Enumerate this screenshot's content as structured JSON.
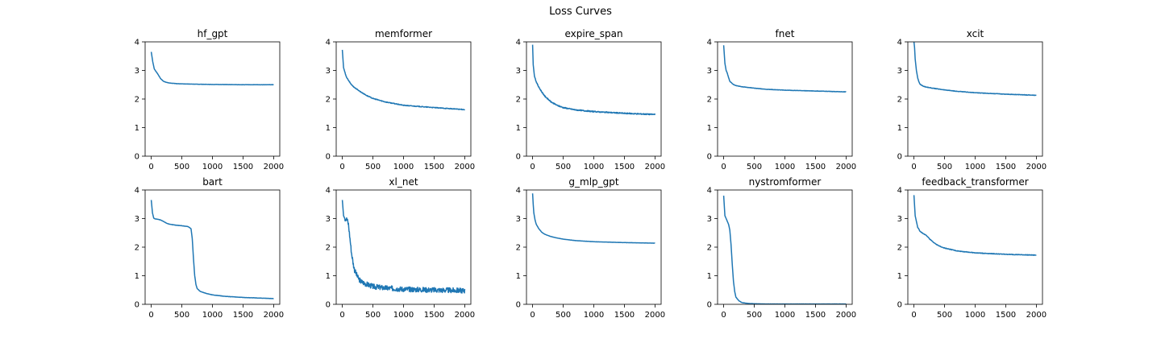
{
  "figure": {
    "title": "Loss Curves"
  },
  "chart_data": [
    {
      "type": "line",
      "title": "hf_gpt",
      "xlim": [
        -100,
        2100
      ],
      "ylim": [
        0,
        4
      ],
      "xticks": [
        0,
        500,
        1000,
        1500,
        2000
      ],
      "yticks": [
        0,
        1,
        2,
        3,
        4
      ],
      "color": "#1f77b4",
      "noise": 0.004,
      "x": [
        0,
        25,
        50,
        75,
        100,
        150,
        200,
        250,
        300,
        400,
        500,
        700,
        1000,
        1500,
        2000
      ],
      "y": [
        3.65,
        3.3,
        3.05,
        2.97,
        2.9,
        2.72,
        2.62,
        2.58,
        2.56,
        2.54,
        2.53,
        2.52,
        2.51,
        2.5,
        2.5
      ]
    },
    {
      "type": "line",
      "title": "memformer",
      "xlim": [
        -100,
        2100
      ],
      "ylim": [
        0,
        4
      ],
      "xticks": [
        0,
        500,
        1000,
        1500,
        2000
      ],
      "yticks": [
        0,
        1,
        2,
        3,
        4
      ],
      "color": "#1f77b4",
      "noise": 0.012,
      "x": [
        0,
        20,
        40,
        60,
        100,
        150,
        200,
        300,
        400,
        500,
        700,
        1000,
        1500,
        2000
      ],
      "y": [
        3.72,
        3.1,
        2.95,
        2.8,
        2.65,
        2.5,
        2.4,
        2.25,
        2.12,
        2.02,
        1.9,
        1.78,
        1.7,
        1.63
      ]
    },
    {
      "type": "line",
      "title": "expire_span",
      "xlim": [
        -100,
        2100
      ],
      "ylim": [
        0,
        4
      ],
      "xticks": [
        0,
        500,
        1000,
        1500,
        2000
      ],
      "yticks": [
        0,
        1,
        2,
        3,
        4
      ],
      "color": "#1f77b4",
      "noise": 0.018,
      "x": [
        0,
        10,
        30,
        60,
        100,
        150,
        200,
        300,
        400,
        500,
        700,
        1000,
        1500,
        2000
      ],
      "y": [
        3.9,
        3.2,
        2.8,
        2.6,
        2.42,
        2.25,
        2.1,
        1.9,
        1.78,
        1.7,
        1.62,
        1.56,
        1.5,
        1.46
      ]
    },
    {
      "type": "line",
      "title": "fnet",
      "xlim": [
        -100,
        2100
      ],
      "ylim": [
        0,
        4
      ],
      "xticks": [
        0,
        500,
        1000,
        1500,
        2000
      ],
      "yticks": [
        0,
        1,
        2,
        3,
        4
      ],
      "color": "#1f77b4",
      "noise": 0.006,
      "x": [
        0,
        20,
        40,
        60,
        80,
        100,
        150,
        200,
        300,
        500,
        700,
        1000,
        1500,
        2000
      ],
      "y": [
        3.88,
        3.25,
        3.0,
        2.9,
        2.75,
        2.62,
        2.52,
        2.47,
        2.43,
        2.38,
        2.34,
        2.31,
        2.28,
        2.25
      ]
    },
    {
      "type": "line",
      "title": "xcit",
      "xlim": [
        -100,
        2100
      ],
      "ylim": [
        0,
        4
      ],
      "xticks": [
        0,
        500,
        1000,
        1500,
        2000
      ],
      "yticks": [
        0,
        1,
        2,
        3,
        4
      ],
      "color": "#1f77b4",
      "noise": 0.008,
      "x": [
        0,
        10,
        20,
        40,
        60,
        80,
        100,
        150,
        200,
        300,
        500,
        700,
        1000,
        1500,
        2000
      ],
      "y": [
        4.0,
        3.8,
        3.4,
        3.0,
        2.75,
        2.6,
        2.52,
        2.45,
        2.42,
        2.38,
        2.32,
        2.27,
        2.22,
        2.17,
        2.13
      ]
    },
    {
      "type": "line",
      "title": "bart",
      "xlim": [
        -100,
        2100
      ],
      "ylim": [
        0,
        4
      ],
      "xticks": [
        0,
        500,
        1000,
        1500,
        2000
      ],
      "yticks": [
        0,
        1,
        2,
        3,
        4
      ],
      "color": "#1f77b4",
      "noise": 0.005,
      "x": [
        0,
        20,
        40,
        60,
        100,
        150,
        200,
        250,
        300,
        400,
        500,
        600,
        650,
        670,
        690,
        710,
        730,
        750,
        800,
        900,
        1000,
        1200,
        1500,
        2000
      ],
      "y": [
        3.65,
        3.2,
        3.02,
        2.99,
        2.98,
        2.95,
        2.9,
        2.84,
        2.8,
        2.77,
        2.75,
        2.72,
        2.65,
        2.3,
        1.6,
        1.0,
        0.7,
        0.55,
        0.45,
        0.38,
        0.33,
        0.28,
        0.24,
        0.2
      ]
    },
    {
      "type": "line",
      "title": "xl_net",
      "xlim": [
        -100,
        2100
      ],
      "ylim": [
        0,
        4
      ],
      "xticks": [
        0,
        500,
        1000,
        1500,
        2000
      ],
      "yticks": [
        0,
        1,
        2,
        3,
        4
      ],
      "color": "#1f77b4",
      "noise": 0.09,
      "x": [
        0,
        20,
        40,
        60,
        80,
        100,
        120,
        150,
        180,
        200,
        250,
        300,
        400,
        500,
        700,
        1000,
        1500,
        2000
      ],
      "y": [
        3.65,
        3.1,
        3.0,
        3.0,
        2.95,
        2.8,
        2.4,
        1.8,
        1.4,
        1.2,
        0.95,
        0.8,
        0.7,
        0.62,
        0.57,
        0.53,
        0.5,
        0.48
      ]
    },
    {
      "type": "line",
      "title": "g_mlp_gpt",
      "xlim": [
        -100,
        2100
      ],
      "ylim": [
        0,
        4
      ],
      "xticks": [
        0,
        500,
        1000,
        1500,
        2000
      ],
      "yticks": [
        0,
        1,
        2,
        3,
        4
      ],
      "color": "#1f77b4",
      "noise": 0.003,
      "x": [
        0,
        10,
        20,
        40,
        60,
        100,
        150,
        200,
        300,
        400,
        500,
        700,
        1000,
        1500,
        2000
      ],
      "y": [
        3.88,
        3.5,
        3.2,
        2.95,
        2.8,
        2.65,
        2.52,
        2.45,
        2.37,
        2.32,
        2.28,
        2.23,
        2.19,
        2.16,
        2.14
      ]
    },
    {
      "type": "line",
      "title": "nystromformer",
      "xlim": [
        -100,
        2100
      ],
      "ylim": [
        0,
        4
      ],
      "xticks": [
        0,
        500,
        1000,
        1500,
        2000
      ],
      "yticks": [
        0,
        1,
        2,
        3,
        4
      ],
      "color": "#1f77b4",
      "noise": 0.003,
      "x": [
        0,
        20,
        40,
        60,
        80,
        100,
        120,
        140,
        160,
        180,
        200,
        250,
        300,
        400,
        500,
        700,
        1000,
        1500,
        2000
      ],
      "y": [
        3.8,
        3.1,
        3.0,
        2.9,
        2.8,
        2.6,
        2.1,
        1.4,
        0.8,
        0.45,
        0.25,
        0.12,
        0.06,
        0.03,
        0.02,
        0.01,
        0.01,
        0.01,
        0.01
      ]
    },
    {
      "type": "line",
      "title": "feedback_transformer",
      "xlim": [
        -100,
        2100
      ],
      "ylim": [
        0,
        4
      ],
      "xticks": [
        0,
        500,
        1000,
        1500,
        2000
      ],
      "yticks": [
        0,
        1,
        2,
        3,
        4
      ],
      "color": "#1f77b4",
      "noise": 0.01,
      "x": [
        0,
        20,
        40,
        60,
        100,
        150,
        200,
        250,
        300,
        400,
        500,
        700,
        1000,
        1500,
        2000
      ],
      "y": [
        3.82,
        3.1,
        2.9,
        2.7,
        2.55,
        2.48,
        2.42,
        2.3,
        2.2,
        2.05,
        1.97,
        1.87,
        1.8,
        1.75,
        1.72
      ]
    }
  ]
}
